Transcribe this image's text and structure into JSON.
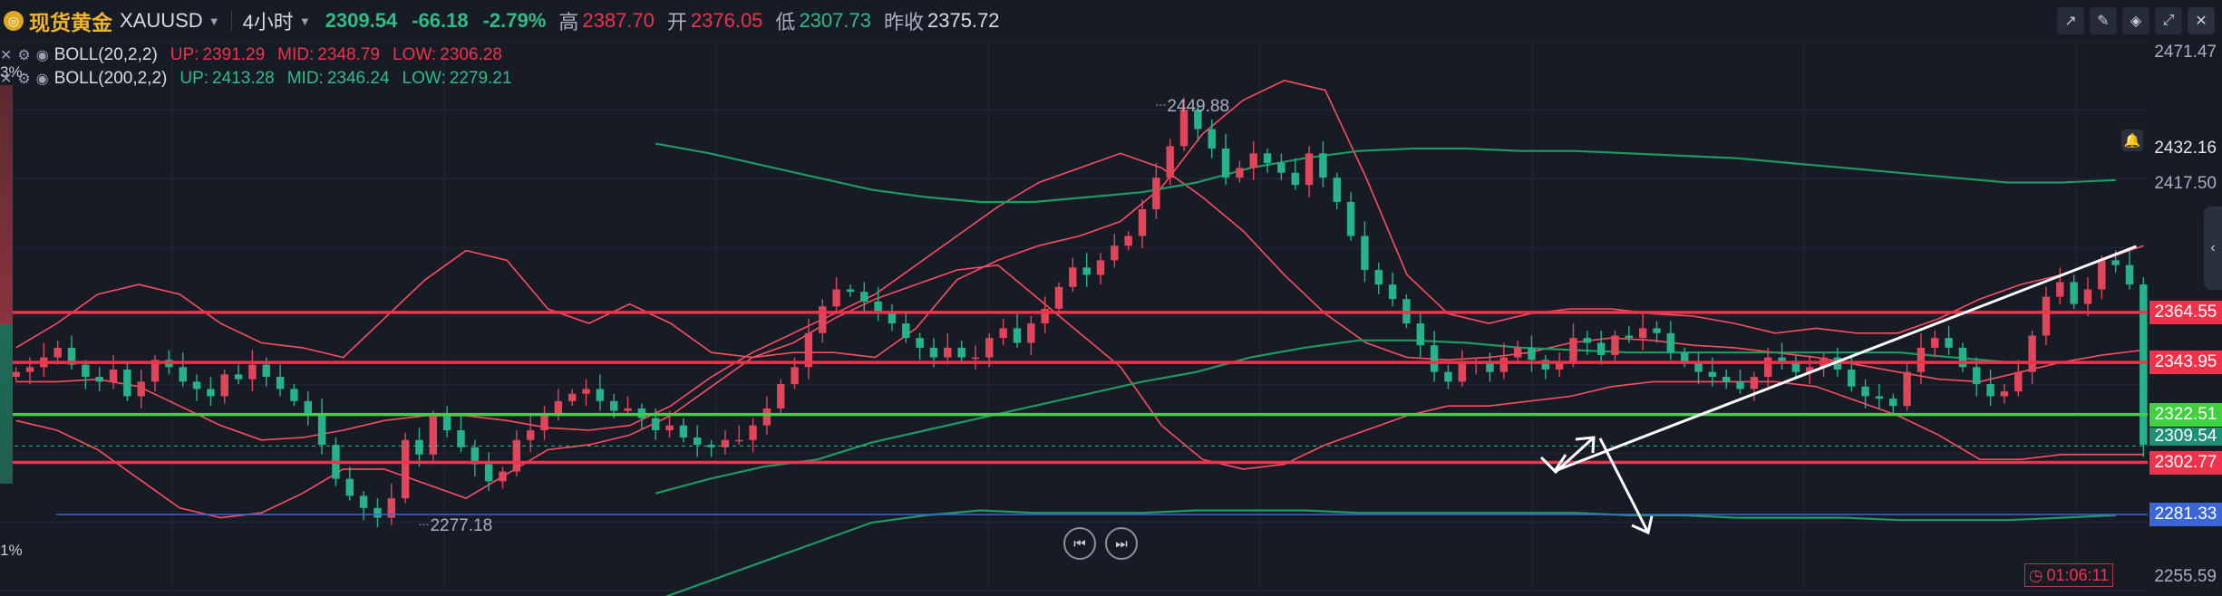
{
  "header": {
    "symbol_cn": "现货黄金",
    "symbol": "XAUUSD",
    "timeframe": "4小时",
    "price": "2309.54",
    "change": "-66.18",
    "change_pct": "-2.79%",
    "high_label": "高",
    "high": "2387.70",
    "open_label": "开",
    "open": "2376.05",
    "low_label": "低",
    "low": "2307.73",
    "prev_close_label": "昨收",
    "prev_close": "2375.72"
  },
  "indicators": [
    {
      "name": "BOLL(20,2,2)",
      "up_label": "UP:",
      "up": "2391.29",
      "mid_label": "MID:",
      "mid": "2348.79",
      "low_label": "LOW:",
      "low": "2306.28"
    },
    {
      "name": "BOLL(200,2,2)",
      "up_label": "UP:",
      "up": "2413.28",
      "mid_label": "MID:",
      "mid": "2346.24",
      "low_label": "LOW:",
      "low": "2279.21"
    }
  ],
  "left_edge": {
    "top": "3%",
    "bottom": "1%"
  },
  "countdown": "01:06:11",
  "colors": {
    "background": "#161b26",
    "up": "#2ebd85",
    "down": "#f0324b",
    "boll20": "#ff4d5e",
    "boll200": "#1f9a60",
    "support": "#3fd13f",
    "blue_line": "#3a66d6"
  },
  "chart_data": {
    "type": "candlestick",
    "symbol": "XAUUSD",
    "timeframe": "4小时",
    "y_axis_ticks": [
      "2471.47",
      "2417.50",
      "2255.59"
    ],
    "y_range": [
      2250,
      2476
    ],
    "current_price": "2309.54",
    "alert_level": "2432.16",
    "horizontal_levels": [
      {
        "value": "2364.55",
        "color": "#f0324b"
      },
      {
        "value": "2343.95",
        "color": "#f0324b"
      },
      {
        "value": "2322.51",
        "color": "#3fd13f"
      },
      {
        "value": "2302.77",
        "color": "#f0324b"
      },
      {
        "value": "2281.33",
        "color": "#3a66d6"
      }
    ],
    "markers": [
      {
        "value": "2449.88",
        "label": "2449.88",
        "bar": 82
      },
      {
        "value": "2277.18",
        "label": "2277.18",
        "bar": 29
      }
    ],
    "closes": [
      2340,
      2342,
      2346,
      2350,
      2343,
      2338,
      2336,
      2341,
      2330,
      2336,
      2345,
      2342,
      2336,
      2333,
      2330,
      2339,
      2337,
      2343,
      2338,
      2333,
      2328,
      2323,
      2310,
      2296,
      2289,
      2284,
      2280,
      2288,
      2312,
      2306,
      2322,
      2316,
      2309,
      2302,
      2295,
      2299,
      2312,
      2316,
      2323,
      2328,
      2331,
      2333,
      2328,
      2324,
      2325,
      2321,
      2316,
      2318,
      2313,
      2310,
      2309,
      2312,
      2312,
      2318,
      2325,
      2335,
      2342,
      2356,
      2367,
      2374,
      2373,
      2369,
      2365,
      2360,
      2354,
      2350,
      2346,
      2350,
      2346,
      2346,
      2354,
      2358,
      2352,
      2360,
      2366,
      2375,
      2383,
      2380,
      2386,
      2392,
      2396,
      2407,
      2420,
      2433,
      2448,
      2440,
      2432,
      2420,
      2424,
      2430,
      2426,
      2422,
      2417,
      2430,
      2420,
      2410,
      2396,
      2382,
      2376,
      2370,
      2360,
      2351,
      2340,
      2336,
      2344,
      2344,
      2340,
      2346,
      2350,
      2345,
      2341,
      2344,
      2354,
      2352,
      2347,
      2355,
      2354,
      2358,
      2356,
      2348,
      2344,
      2340,
      2338,
      2336,
      2333,
      2338,
      2346,
      2344,
      2340,
      2342,
      2346,
      2341,
      2334,
      2330,
      2329,
      2326,
      2340,
      2350,
      2354,
      2350,
      2342,
      2335,
      2330,
      2332,
      2340,
      2355,
      2371,
      2377,
      2368,
      2374,
      2386,
      2384,
      2376,
      2310
    ],
    "boll20": {
      "up": [
        2350,
        2360,
        2372,
        2376,
        2372,
        2360,
        2352,
        2350,
        2346,
        2362,
        2378,
        2390,
        2386,
        2366,
        2360,
        2368,
        2360,
        2348,
        2346,
        2348,
        2348,
        2346,
        2358,
        2378,
        2386,
        2392,
        2396,
        2402,
        2416,
        2438,
        2452,
        2460,
        2456,
        2420,
        2380,
        2364,
        2360,
        2364,
        2366,
        2366,
        2364,
        2363,
        2360,
        2356,
        2358,
        2356,
        2356,
        2362,
        2370,
        2376,
        2380,
        2386,
        2392
      ],
      "mid": [
        2336,
        2336,
        2337,
        2334,
        2326,
        2318,
        2312,
        2313,
        2316,
        2320,
        2322,
        2322,
        2320,
        2317,
        2316,
        2318,
        2326,
        2338,
        2348,
        2356,
        2364,
        2372,
        2384,
        2396,
        2408,
        2418,
        2424,
        2430,
        2424,
        2412,
        2398,
        2380,
        2364,
        2352,
        2346,
        2345,
        2346,
        2348,
        2352,
        2354,
        2353,
        2351,
        2350,
        2348,
        2346,
        2343,
        2340,
        2337,
        2336,
        2340,
        2344,
        2347,
        2349
      ],
      "low": [
        2320,
        2316,
        2308,
        2296,
        2284,
        2280,
        2282,
        2290,
        2300,
        2300,
        2294,
        2288,
        2298,
        2308,
        2310,
        2314,
        2322,
        2334,
        2346,
        2352,
        2362,
        2370,
        2376,
        2382,
        2384,
        2370,
        2356,
        2342,
        2318,
        2304,
        2300,
        2302,
        2310,
        2316,
        2322,
        2326,
        2326,
        2328,
        2330,
        2334,
        2336,
        2336,
        2336,
        2336,
        2334,
        2328,
        2322,
        2314,
        2304,
        2304,
        2306,
        2306,
        2306
      ]
    },
    "boll200": {
      "up": [
        2434,
        2430,
        2425,
        2420,
        2415,
        2412,
        2410,
        2410,
        2412,
        2414,
        2418,
        2424,
        2428,
        2431,
        2432,
        2432,
        2431,
        2431,
        2430,
        2429,
        2428,
        2426,
        2424,
        2422,
        2420,
        2418,
        2418,
        2419
      ],
      "mid": [
        2290,
        2296,
        2301,
        2304,
        2311,
        2316,
        2321,
        2326,
        2331,
        2336,
        2340,
        2346,
        2350,
        2353,
        2353,
        2352,
        2350,
        2349,
        2348,
        2348,
        2348,
        2348,
        2348,
        2348,
        2346,
        2344,
        2344,
        2344
      ],
      "low": [
        2246,
        2254,
        2262,
        2270,
        2278,
        2281,
        2283,
        2282,
        2282,
        2282,
        2283,
        2283,
        2283,
        2282,
        2282,
        2282,
        2282,
        2282,
        2281,
        2281,
        2280,
        2280,
        2280,
        2279,
        2279,
        2279,
        2280,
        2281
      ]
    }
  }
}
